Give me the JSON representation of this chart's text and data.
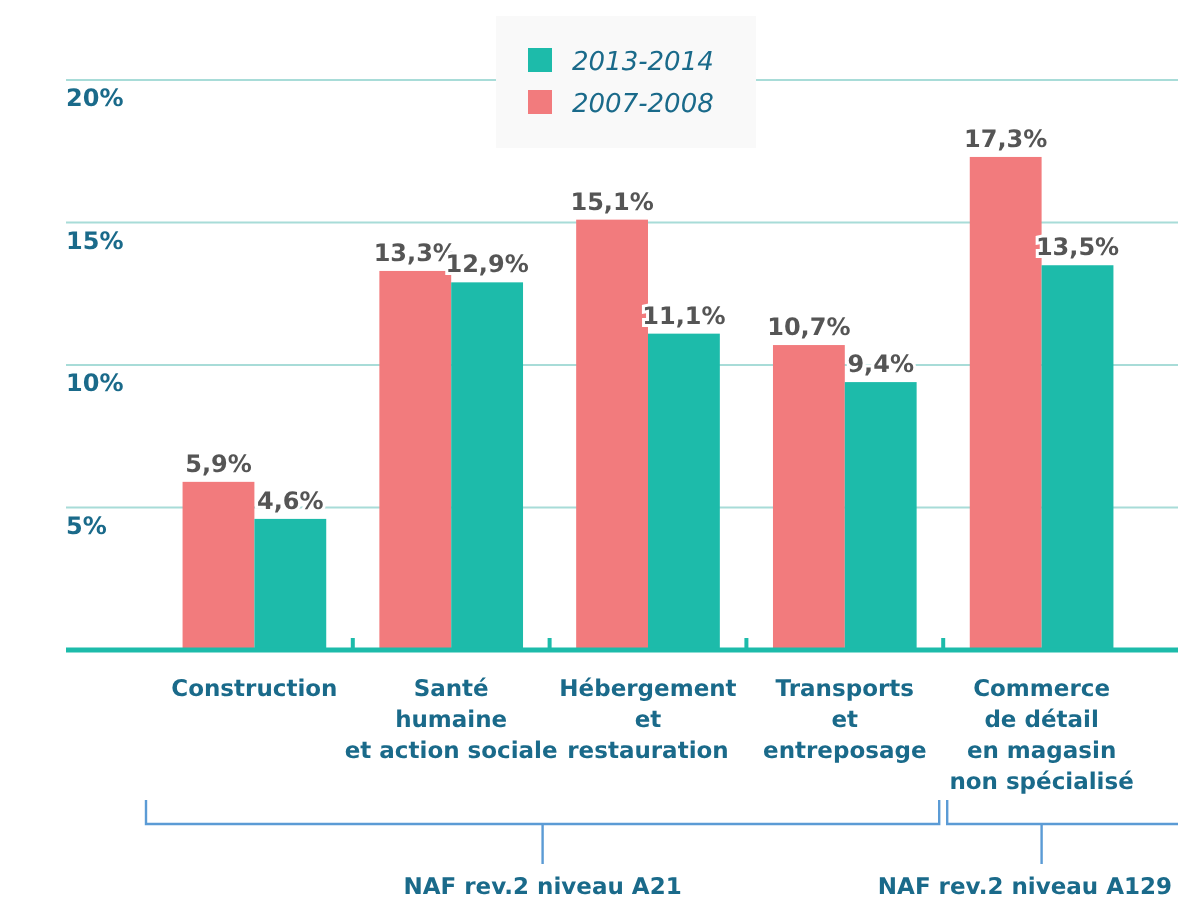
{
  "chart_data": {
    "type": "bar",
    "categories": [
      "Construction",
      "Santé\nhumaine\net action sociale",
      "Hébergement\net\nrestauration",
      "Transports\net\nentreposage",
      "Commerce\nde détail\nen magasin\nnon spécialisé"
    ],
    "series": [
      {
        "name": "2007-2008",
        "color": "#f27b7d",
        "values": [
          5.9,
          13.3,
          15.1,
          10.7,
          17.3
        ],
        "value_labels": [
          "5,9%",
          "13,3%",
          "15,1%",
          "10,7%",
          "17,3%"
        ]
      },
      {
        "name": "2013-2014",
        "color": "#1dbbaa",
        "values": [
          4.6,
          12.9,
          11.1,
          9.4,
          13.5
        ],
        "value_labels": [
          "4,6%",
          "12,9%",
          "11,1%",
          "9,4%",
          "13,5%"
        ]
      }
    ],
    "ylim": [
      0,
      20
    ],
    "yticks": [
      {
        "value": 5,
        "label": "5%"
      },
      {
        "value": 10,
        "label": "10%"
      },
      {
        "value": 15,
        "label": "15%"
      },
      {
        "value": 20,
        "label": "20%"
      }
    ],
    "grid": "y",
    "legend": "top",
    "annotations": [
      "NAF rev.2 niveau A21",
      "NAF rev.2 niveau A129"
    ]
  }
}
